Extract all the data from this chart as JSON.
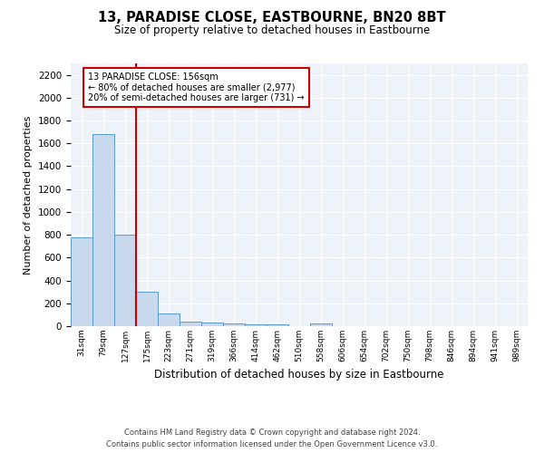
{
  "title": "13, PARADISE CLOSE, EASTBOURNE, BN20 8BT",
  "subtitle": "Size of property relative to detached houses in Eastbourne",
  "xlabel": "Distribution of detached houses by size in Eastbourne",
  "ylabel": "Number of detached properties",
  "categories": [
    "31sqm",
    "79sqm",
    "127sqm",
    "175sqm",
    "223sqm",
    "271sqm",
    "319sqm",
    "366sqm",
    "414sqm",
    "462sqm",
    "510sqm",
    "558sqm",
    "606sqm",
    "654sqm",
    "702sqm",
    "750sqm",
    "798sqm",
    "846sqm",
    "894sqm",
    "941sqm",
    "989sqm"
  ],
  "values": [
    775,
    1680,
    800,
    300,
    110,
    40,
    28,
    22,
    18,
    15,
    0,
    20,
    0,
    0,
    0,
    0,
    0,
    0,
    0,
    0,
    0
  ],
  "bar_color": "#c9d9ed",
  "bar_edge_color": "#5b9bd5",
  "vline_color": "#cc0000",
  "annotation_text": "13 PARADISE CLOSE: 156sqm\n← 80% of detached houses are smaller (2,977)\n20% of semi-detached houses are larger (731) →",
  "annotation_box_color": "white",
  "annotation_box_edge_color": "#cc0000",
  "ylim": [
    0,
    2300
  ],
  "yticks": [
    0,
    200,
    400,
    600,
    800,
    1000,
    1200,
    1400,
    1600,
    1800,
    2000,
    2200
  ],
  "background_color": "#eef3f9",
  "grid_color": "white",
  "footer_line1": "Contains HM Land Registry data © Crown copyright and database right 2024.",
  "footer_line2": "Contains public sector information licensed under the Open Government Licence v3.0."
}
